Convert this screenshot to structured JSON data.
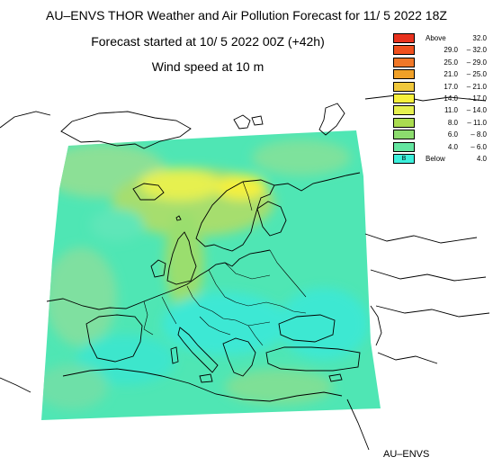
{
  "header": {
    "title": "AU–ENVS THOR Weather and Air Pollution Forecast for 11/ 5 2022  18Z",
    "subtitle": "Forecast started at 10/ 5 2022  00Z (+42h)",
    "variable": "Wind speed at 10 m"
  },
  "legend": [
    {
      "label": "Above",
      "value": "32.0",
      "color": "#e8321e"
    },
    {
      "lo": "29.0",
      "hi": "32.0",
      "color": "#f0501e"
    },
    {
      "lo": "25.0",
      "hi": "29.0",
      "color": "#f07828"
    },
    {
      "lo": "21.0",
      "hi": "25.0",
      "color": "#f0a028"
    },
    {
      "lo": "17.0",
      "hi": "21.0",
      "color": "#f0c83c"
    },
    {
      "lo": "14.0",
      "hi": "17.0",
      "color": "#f8f03c"
    },
    {
      "lo": "11.0",
      "hi": "14.0",
      "color": "#e6f050"
    },
    {
      "lo": "8.0",
      "hi": "11.0",
      "color": "#aadc50"
    },
    {
      "lo": "6.0",
      "hi": "8.0",
      "color": "#8cdc6e"
    },
    {
      "lo": "4.0",
      "hi": "6.0",
      "color": "#64e6a0"
    },
    {
      "label": "Below",
      "value": "4.0",
      "color": "#3cf0dc",
      "mark": "B"
    }
  ],
  "credit": "AU–ENVS"
}
